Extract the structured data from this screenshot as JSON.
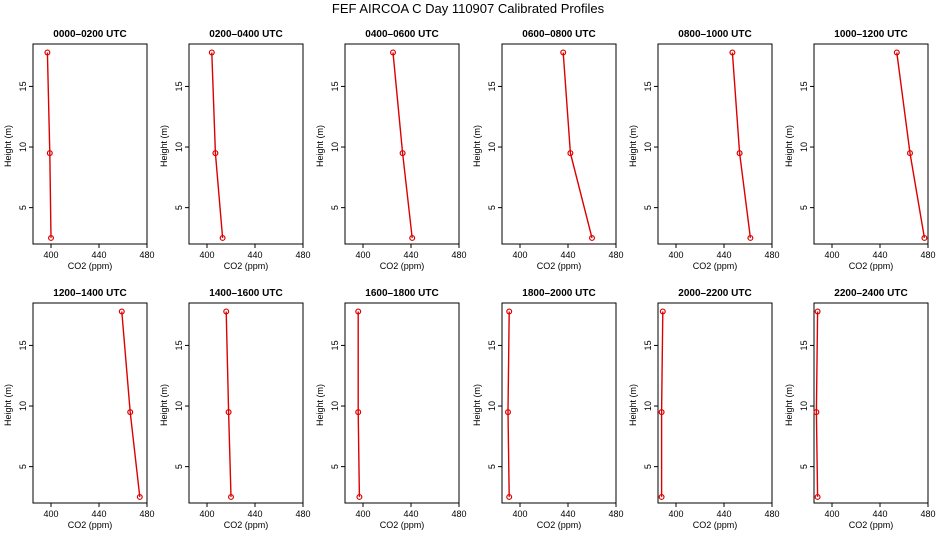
{
  "chart_data": {
    "title": "FEF AIRCOA C  Day 110907  Calibrated Profiles",
    "type": "line",
    "xlabel": "CO2 (ppm)",
    "ylabel": "Height (m)",
    "xlim": [
      385,
      480
    ],
    "ylim": [
      2,
      18.5
    ],
    "xticks": [
      400,
      440,
      480
    ],
    "yticks": [
      5,
      10,
      15
    ],
    "panels": [
      {
        "title": "0000–0200 UTC",
        "points": [
          {
            "x": 397,
            "y": 17.8
          },
          {
            "x": 399,
            "y": 9.5
          },
          {
            "x": 400,
            "y": 2.5
          }
        ]
      },
      {
        "title": "0200–0400 UTC",
        "points": [
          {
            "x": 404,
            "y": 17.8
          },
          {
            "x": 407,
            "y": 9.5
          },
          {
            "x": 413,
            "y": 2.5
          }
        ]
      },
      {
        "title": "0400–0600 UTC",
        "points": [
          {
            "x": 425,
            "y": 17.8
          },
          {
            "x": 433,
            "y": 9.5
          },
          {
            "x": 441,
            "y": 2.5
          }
        ]
      },
      {
        "title": "0600–0800 UTC",
        "points": [
          {
            "x": 436,
            "y": 17.8
          },
          {
            "x": 442,
            "y": 9.5
          },
          {
            "x": 460,
            "y": 2.5
          }
        ]
      },
      {
        "title": "0800–1000 UTC",
        "points": [
          {
            "x": 447,
            "y": 17.8
          },
          {
            "x": 453,
            "y": 9.5
          },
          {
            "x": 462,
            "y": 2.5
          }
        ]
      },
      {
        "title": "1000–1200 UTC",
        "points": [
          {
            "x": 454,
            "y": 17.8
          },
          {
            "x": 465,
            "y": 9.5
          },
          {
            "x": 477,
            "y": 2.5
          }
        ]
      },
      {
        "title": "1200–1400 UTC",
        "points": [
          {
            "x": 459,
            "y": 17.8
          },
          {
            "x": 466,
            "y": 9.5
          },
          {
            "x": 474,
            "y": 2.5
          }
        ]
      },
      {
        "title": "1400–1600 UTC",
        "points": [
          {
            "x": 416,
            "y": 17.8
          },
          {
            "x": 418,
            "y": 9.5
          },
          {
            "x": 420,
            "y": 2.5
          }
        ]
      },
      {
        "title": "1600–1800 UTC",
        "points": [
          {
            "x": 396,
            "y": 17.8
          },
          {
            "x": 396,
            "y": 9.5
          },
          {
            "x": 397,
            "y": 2.5
          }
        ]
      },
      {
        "title": "1800–2000 UTC",
        "points": [
          {
            "x": 391,
            "y": 17.8
          },
          {
            "x": 390,
            "y": 9.5
          },
          {
            "x": 391,
            "y": 2.5
          }
        ]
      },
      {
        "title": "2000–2200 UTC",
        "points": [
          {
            "x": 389,
            "y": 17.8
          },
          {
            "x": 388,
            "y": 9.5
          },
          {
            "x": 388,
            "y": 2.5
          }
        ]
      },
      {
        "title": "2200–2400 UTC",
        "points": [
          {
            "x": 388,
            "y": 17.8
          },
          {
            "x": 387,
            "y": 9.5
          },
          {
            "x": 388,
            "y": 2.5
          }
        ]
      }
    ]
  }
}
